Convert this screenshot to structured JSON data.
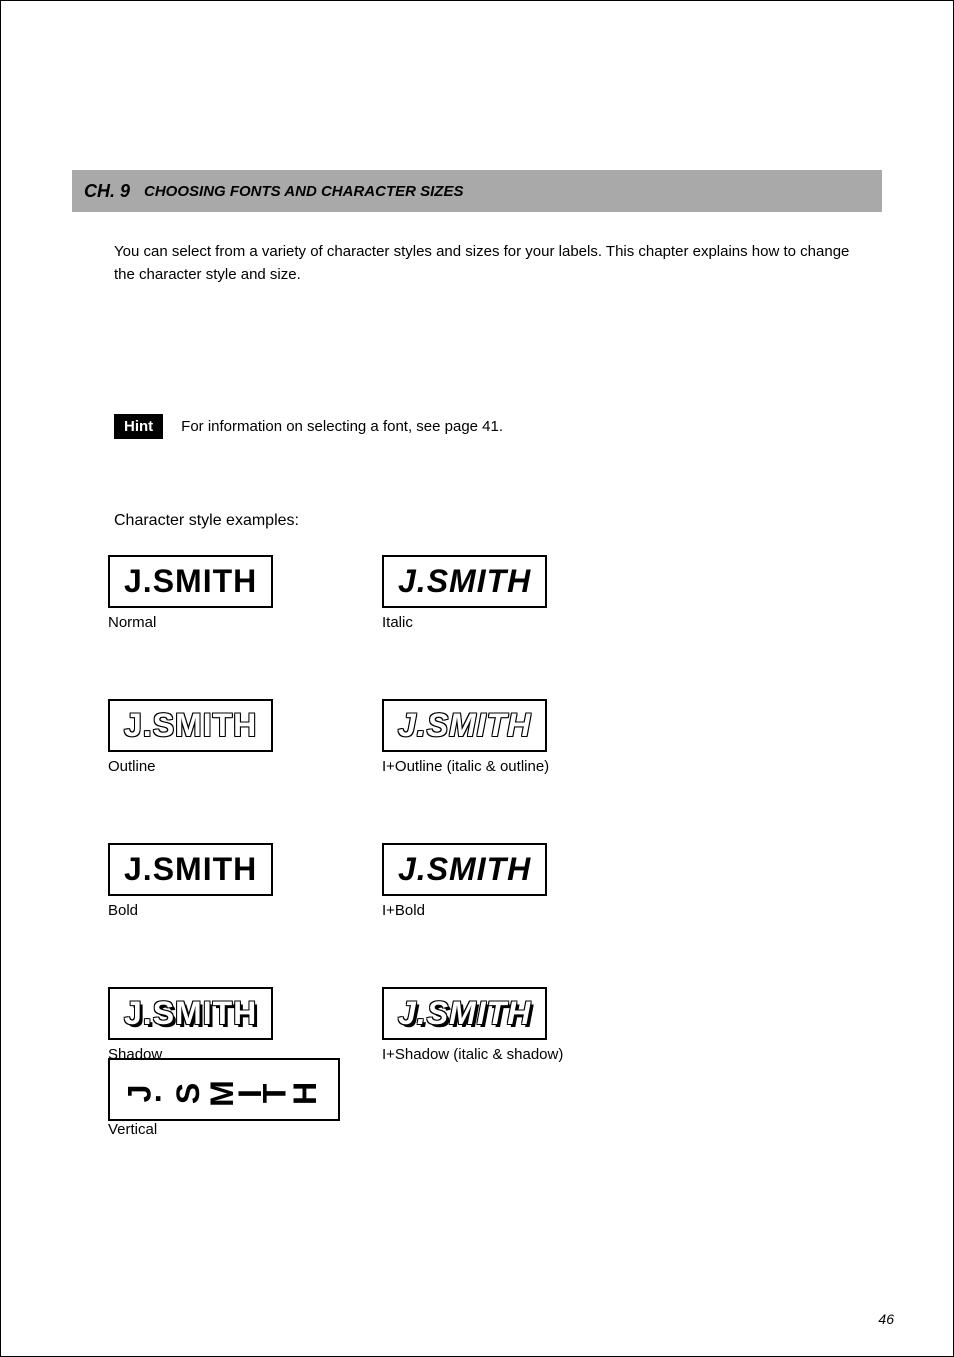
{
  "chapter": {
    "number": "CH. 9",
    "title": "CHOOSING FONTS AND CHARACTER SIZES"
  },
  "intro": "You can select from a variety of character styles and sizes for your labels. This chapter explains how to change the character style and size.",
  "hint": {
    "badge": "Hint",
    "text": "For information on selecting a font, see page 41."
  },
  "subhead": "Character style examples:",
  "sample_text": "J.SMITH",
  "styles": {
    "normal": {
      "caption": "Normal"
    },
    "italic": {
      "caption": "Italic"
    },
    "outline": {
      "caption": "Outline"
    },
    "ioutline": {
      "caption": "I+Outline (italic & outline)"
    },
    "bold": {
      "caption": "Bold"
    },
    "bolditalic": {
      "caption": "I+Bold"
    },
    "shadow": {
      "caption": "Shadow"
    },
    "ishadow": {
      "caption": "I+Shadow (italic & shadow)"
    },
    "vertical": {
      "caption": "Vertical"
    }
  },
  "page_number": "46"
}
